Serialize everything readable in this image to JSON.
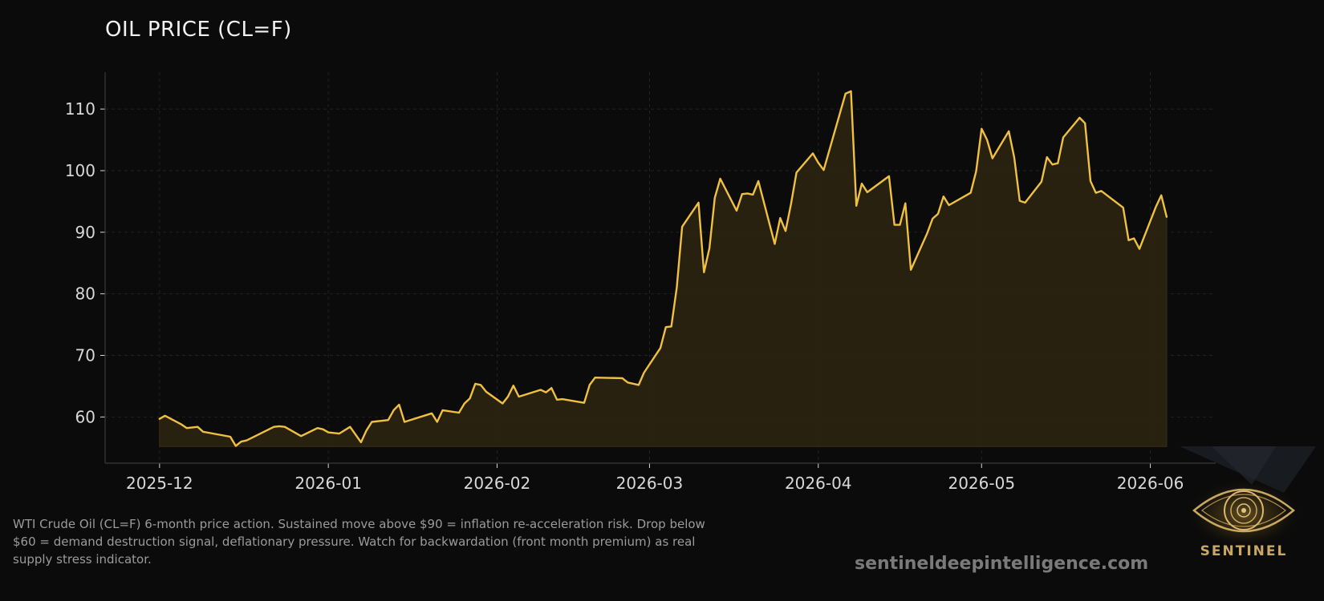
{
  "header": {
    "title": "OIL PRICE (CL=F)"
  },
  "caption": "WTI Crude Oil (CL=F) 6-month price action. Sustained move above $90 = inflation re-acceleration risk. Drop below $60 = demand destruction signal, deflationary pressure. Watch for backwardation (front month premium) as real supply stress indicator.",
  "footer": {
    "website": "sentineldeepintelligence.com"
  },
  "logo": {
    "word": "SENTINEL",
    "icon": "eye-icon"
  },
  "colors": {
    "background": "#0b0b0b",
    "line": "#f0c040",
    "fill": "#2a2311",
    "grid": "#222222",
    "axis": "#3a3a3a",
    "tick_text": "#d8d8d8"
  },
  "chart_data": {
    "type": "area",
    "title": "OIL PRICE (CL=F)",
    "xlabel": "",
    "ylabel": "",
    "x_ticks": [
      "2025-12",
      "2026-01",
      "2026-02",
      "2026-03",
      "2026-04",
      "2026-05",
      "2026-06"
    ],
    "y_ticks": [
      60,
      70,
      80,
      90,
      100,
      110
    ],
    "xlim": [
      "2025-11-21",
      "2026-06-13"
    ],
    "ylim": [
      52.5,
      116
    ],
    "baseline": 55.2,
    "grid": true,
    "legend": "none",
    "series": [
      {
        "x": [
          "2025-12-01",
          "2025-12-02",
          "2025-12-05",
          "2025-12-06",
          "2025-12-08",
          "2025-12-09",
          "2025-12-14",
          "2025-12-15",
          "2025-12-16",
          "2025-12-17",
          "2025-12-22",
          "2025-12-23",
          "2025-12-24",
          "2025-12-27",
          "2025-12-30",
          "2025-12-31",
          "2026-01-01",
          "2026-01-03",
          "2026-01-05",
          "2026-01-07",
          "2026-01-08",
          "2026-01-09",
          "2026-01-12",
          "2026-01-13",
          "2026-01-14",
          "2026-01-15",
          "2026-01-20",
          "2026-01-21",
          "2026-01-22",
          "2026-01-25",
          "2026-01-26",
          "2026-01-27",
          "2026-01-28",
          "2026-01-29",
          "2026-01-30",
          "2026-02-02",
          "2026-02-03",
          "2026-02-04",
          "2026-02-05",
          "2026-02-09",
          "2026-02-10",
          "2026-02-11",
          "2026-02-12",
          "2026-02-13",
          "2026-02-17",
          "2026-02-18",
          "2026-02-19",
          "2026-02-24",
          "2026-02-25",
          "2026-02-27",
          "2026-02-28",
          "2026-03-03",
          "2026-03-04",
          "2026-03-05",
          "2026-03-06",
          "2026-03-07",
          "2026-03-10",
          "2026-03-11",
          "2026-03-12",
          "2026-03-13",
          "2026-03-14",
          "2026-03-17",
          "2026-03-18",
          "2026-03-19",
          "2026-03-20",
          "2026-03-21",
          "2026-03-24",
          "2026-03-25",
          "2026-03-26",
          "2026-03-27",
          "2026-03-28",
          "2026-03-31",
          "2026-04-01",
          "2026-04-02",
          "2026-04-06",
          "2026-04-07",
          "2026-04-08",
          "2026-04-09",
          "2026-04-10",
          "2026-04-14",
          "2026-04-15",
          "2026-04-16",
          "2026-04-17",
          "2026-04-18",
          "2026-04-21",
          "2026-04-22",
          "2026-04-23",
          "2026-04-24",
          "2026-04-25",
          "2026-04-29",
          "2026-04-30",
          "2026-05-01",
          "2026-05-02",
          "2026-05-03",
          "2026-05-06",
          "2026-05-07",
          "2026-05-08",
          "2026-05-09",
          "2026-05-12",
          "2026-05-13",
          "2026-05-14",
          "2026-05-15",
          "2026-05-16",
          "2026-05-19",
          "2026-05-20",
          "2026-05-21",
          "2026-05-22",
          "2026-05-23",
          "2026-05-27",
          "2026-05-28",
          "2026-05-29",
          "2026-05-30",
          "2026-06-02",
          "2026-06-03",
          "2026-06-04"
        ],
        "y": [
          59.7,
          60.2,
          58.8,
          58.2,
          58.4,
          57.6,
          56.8,
          55.3,
          56.0,
          56.2,
          58.4,
          58.5,
          58.4,
          56.9,
          58.2,
          58.0,
          57.5,
          57.3,
          58.4,
          55.9,
          57.8,
          59.2,
          59.5,
          61.1,
          62.0,
          59.2,
          60.6,
          59.2,
          61.1,
          60.7,
          62.2,
          63.0,
          65.4,
          65.2,
          64.1,
          62.2,
          63.3,
          65.1,
          63.3,
          64.4,
          64.0,
          64.7,
          62.8,
          62.9,
          62.3,
          65.2,
          66.4,
          66.3,
          65.6,
          65.2,
          67.2,
          71.2,
          74.6,
          74.7,
          81.0,
          90.9,
          94.8,
          83.5,
          87.4,
          95.6,
          98.7,
          93.5,
          96.2,
          96.3,
          96.1,
          98.3,
          88.1,
          92.3,
          90.2,
          94.6,
          99.7,
          102.8,
          101.3,
          100.1,
          112.5,
          112.9,
          94.3,
          97.9,
          96.5,
          99.1,
          91.2,
          91.2,
          94.7,
          83.9,
          89.8,
          92.2,
          93.0,
          95.8,
          94.4,
          96.4,
          99.9,
          106.8,
          105.0,
          102.0,
          106.4,
          102.1,
          95.1,
          94.8,
          98.2,
          102.2,
          101.0,
          101.2,
          105.4,
          108.6,
          107.7,
          98.3,
          96.4,
          96.7,
          94.0,
          88.7,
          89.0,
          87.3,
          94.1,
          96.0,
          92.5
        ]
      }
    ]
  }
}
